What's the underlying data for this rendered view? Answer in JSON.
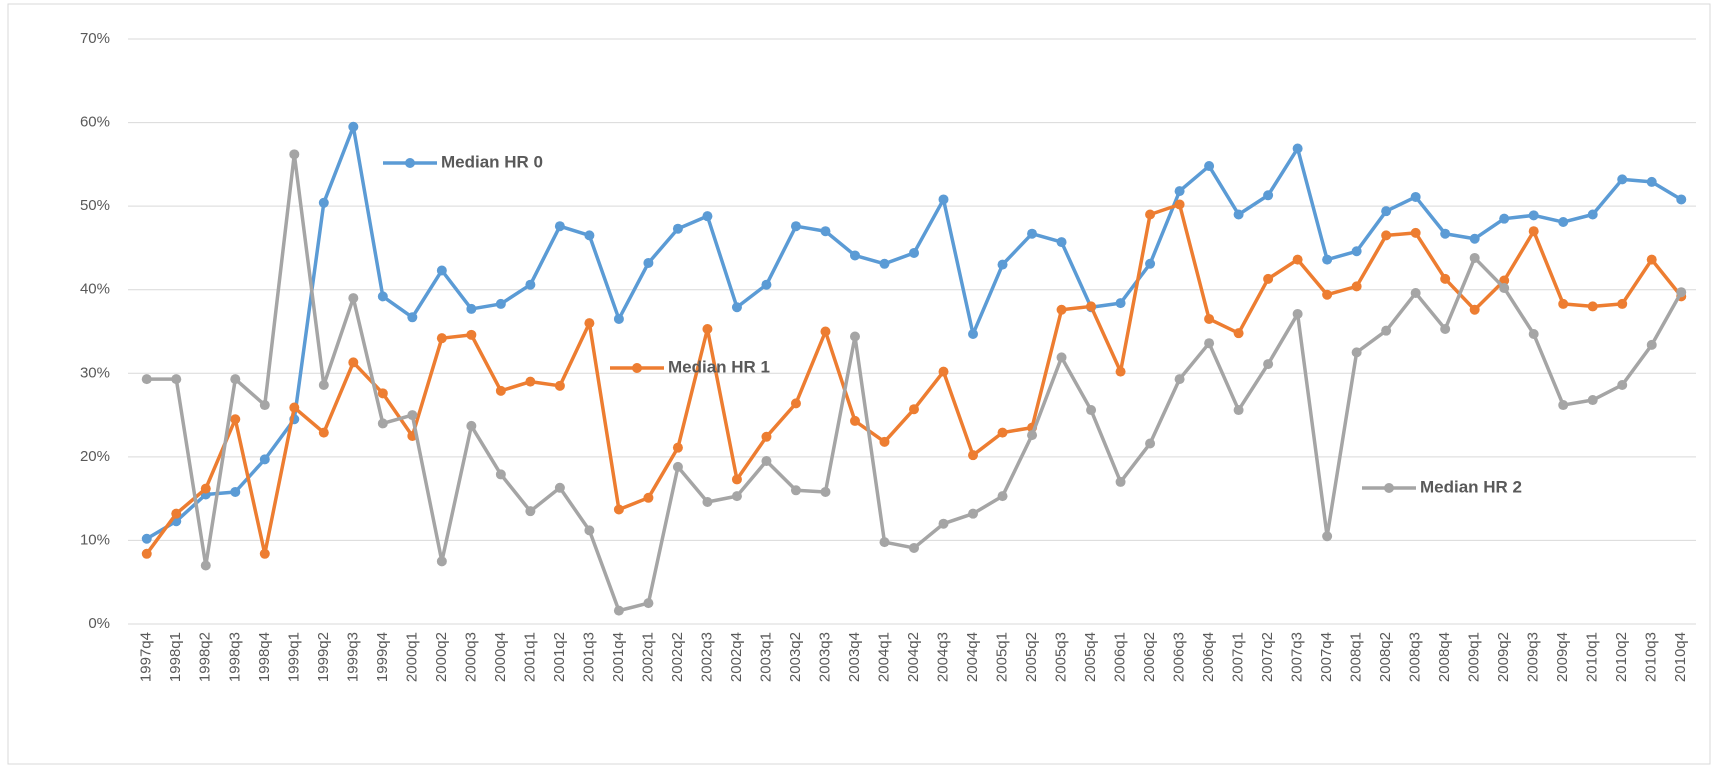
{
  "chart_data": {
    "type": "line",
    "categories": [
      "1997q4",
      "1998q1",
      "1998q2",
      "1998q3",
      "1998q4",
      "1999q1",
      "1999q2",
      "1999q3",
      "1999q4",
      "2000q1",
      "2000q2",
      "2000q3",
      "2000q4",
      "2001q1",
      "2001q2",
      "2001q3",
      "2001q4",
      "2002q1",
      "2002q2",
      "2002q3",
      "2002q4",
      "2003q1",
      "2003q2",
      "2003q3",
      "2003q4",
      "2004q1",
      "2004q2",
      "2004q3",
      "2004q4",
      "2005q1",
      "2005q2",
      "2005q3",
      "2005q4",
      "2006q1",
      "2006q2",
      "2006q3",
      "2006q4",
      "2007q1",
      "2007q2",
      "2007q3",
      "2007q4",
      "2008q1",
      "2008q2",
      "2008q3",
      "2008q4",
      "2009q1",
      "2009q2",
      "2009q3",
      "2009q4",
      "2010q1",
      "2010q2",
      "2010q3",
      "2010q4"
    ],
    "series": [
      {
        "name": "Median HR 0",
        "color": "#5b9bd5",
        "values": [
          10.2,
          12.3,
          15.5,
          15.8,
          19.7,
          24.5,
          50.4,
          59.5,
          39.2,
          36.7,
          42.3,
          37.7,
          38.3,
          40.6,
          47.6,
          46.5,
          36.5,
          43.2,
          47.3,
          48.8,
          37.9,
          40.6,
          47.6,
          47.0,
          44.1,
          43.1,
          44.4,
          50.8,
          34.7,
          43.0,
          46.7,
          45.7,
          37.9,
          38.4,
          43.1,
          51.8,
          54.8,
          49.0,
          51.3,
          56.9,
          43.6,
          44.6,
          49.4,
          51.1,
          46.7,
          46.1,
          48.5,
          48.9,
          48.1,
          49.0,
          53.2,
          52.9,
          50.8
        ]
      },
      {
        "name": "Median HR 1",
        "color": "#ed7d31",
        "values": [
          8.4,
          13.2,
          16.2,
          24.5,
          8.4,
          25.9,
          22.9,
          31.3,
          27.6,
          22.5,
          34.2,
          34.6,
          27.9,
          29.0,
          28.5,
          36.0,
          13.7,
          15.1,
          21.1,
          35.3,
          17.3,
          22.4,
          26.4,
          35.0,
          24.3,
          21.8,
          25.7,
          30.2,
          20.2,
          22.9,
          23.5,
          37.6,
          38.0,
          30.2,
          49.0,
          50.2,
          36.5,
          34.8,
          41.3,
          43.6,
          39.4,
          40.4,
          46.5,
          46.8,
          41.3,
          37.6,
          41.1,
          47.0,
          38.3,
          38.0,
          38.3,
          43.6,
          39.2
        ]
      },
      {
        "name": "Median HR 2",
        "color": "#a5a5a5",
        "values": [
          29.3,
          29.3,
          7.0,
          29.3,
          26.2,
          56.2,
          28.6,
          39.0,
          24.0,
          25.0,
          7.5,
          23.7,
          17.9,
          13.5,
          16.3,
          11.2,
          1.6,
          2.5,
          18.8,
          14.6,
          15.3,
          19.5,
          16.0,
          15.8,
          34.4,
          9.8,
          9.1,
          12.0,
          13.2,
          15.3,
          22.6,
          31.9,
          25.6,
          17.0,
          21.6,
          29.3,
          33.6,
          25.6,
          31.1,
          37.1,
          10.5,
          32.5,
          35.1,
          39.6,
          35.3,
          43.8,
          40.2,
          34.7,
          26.2,
          26.8,
          28.6,
          33.4,
          39.7
        ]
      }
    ],
    "ylim": [
      0,
      70
    ],
    "yticks": [
      {
        "value": 0,
        "label": "0%"
      },
      {
        "value": 10,
        "label": "10%"
      },
      {
        "value": 20,
        "label": "20%"
      },
      {
        "value": 30,
        "label": "30%"
      },
      {
        "value": 40,
        "label": "40%"
      },
      {
        "value": 50,
        "label": "50%"
      },
      {
        "value": 60,
        "label": "60%"
      },
      {
        "value": 70,
        "label": "70%"
      }
    ],
    "grid": true
  }
}
